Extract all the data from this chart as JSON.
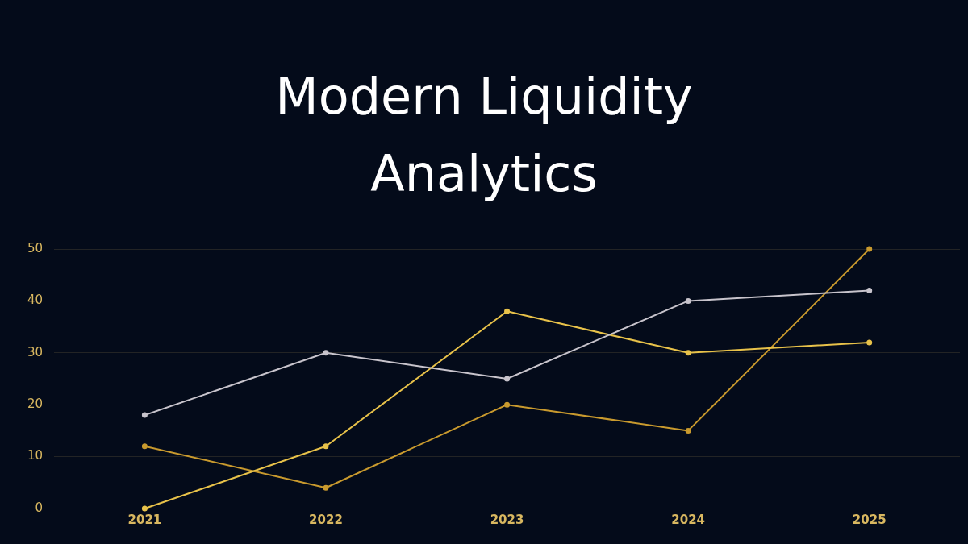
{
  "chart_data": {
    "type": "line",
    "title": "Modern Liquidity Analytics",
    "categories": [
      "2021",
      "2022",
      "2023",
      "2024",
      "2025"
    ],
    "series": [
      {
        "color": "#c8c4cc",
        "values": [
          18,
          30,
          25,
          40,
          42
        ]
      },
      {
        "color": "#e8c24a",
        "values": [
          0,
          12,
          38,
          30,
          32
        ]
      },
      {
        "color": "#c99a2e",
        "values": [
          12,
          4,
          20,
          15,
          50
        ]
      }
    ],
    "ylim": [
      0,
      50
    ],
    "yticks": [
      0,
      10,
      20,
      30,
      40,
      50
    ],
    "grid": "y",
    "legend": false,
    "marker": "circle",
    "line_style": "solid"
  }
}
